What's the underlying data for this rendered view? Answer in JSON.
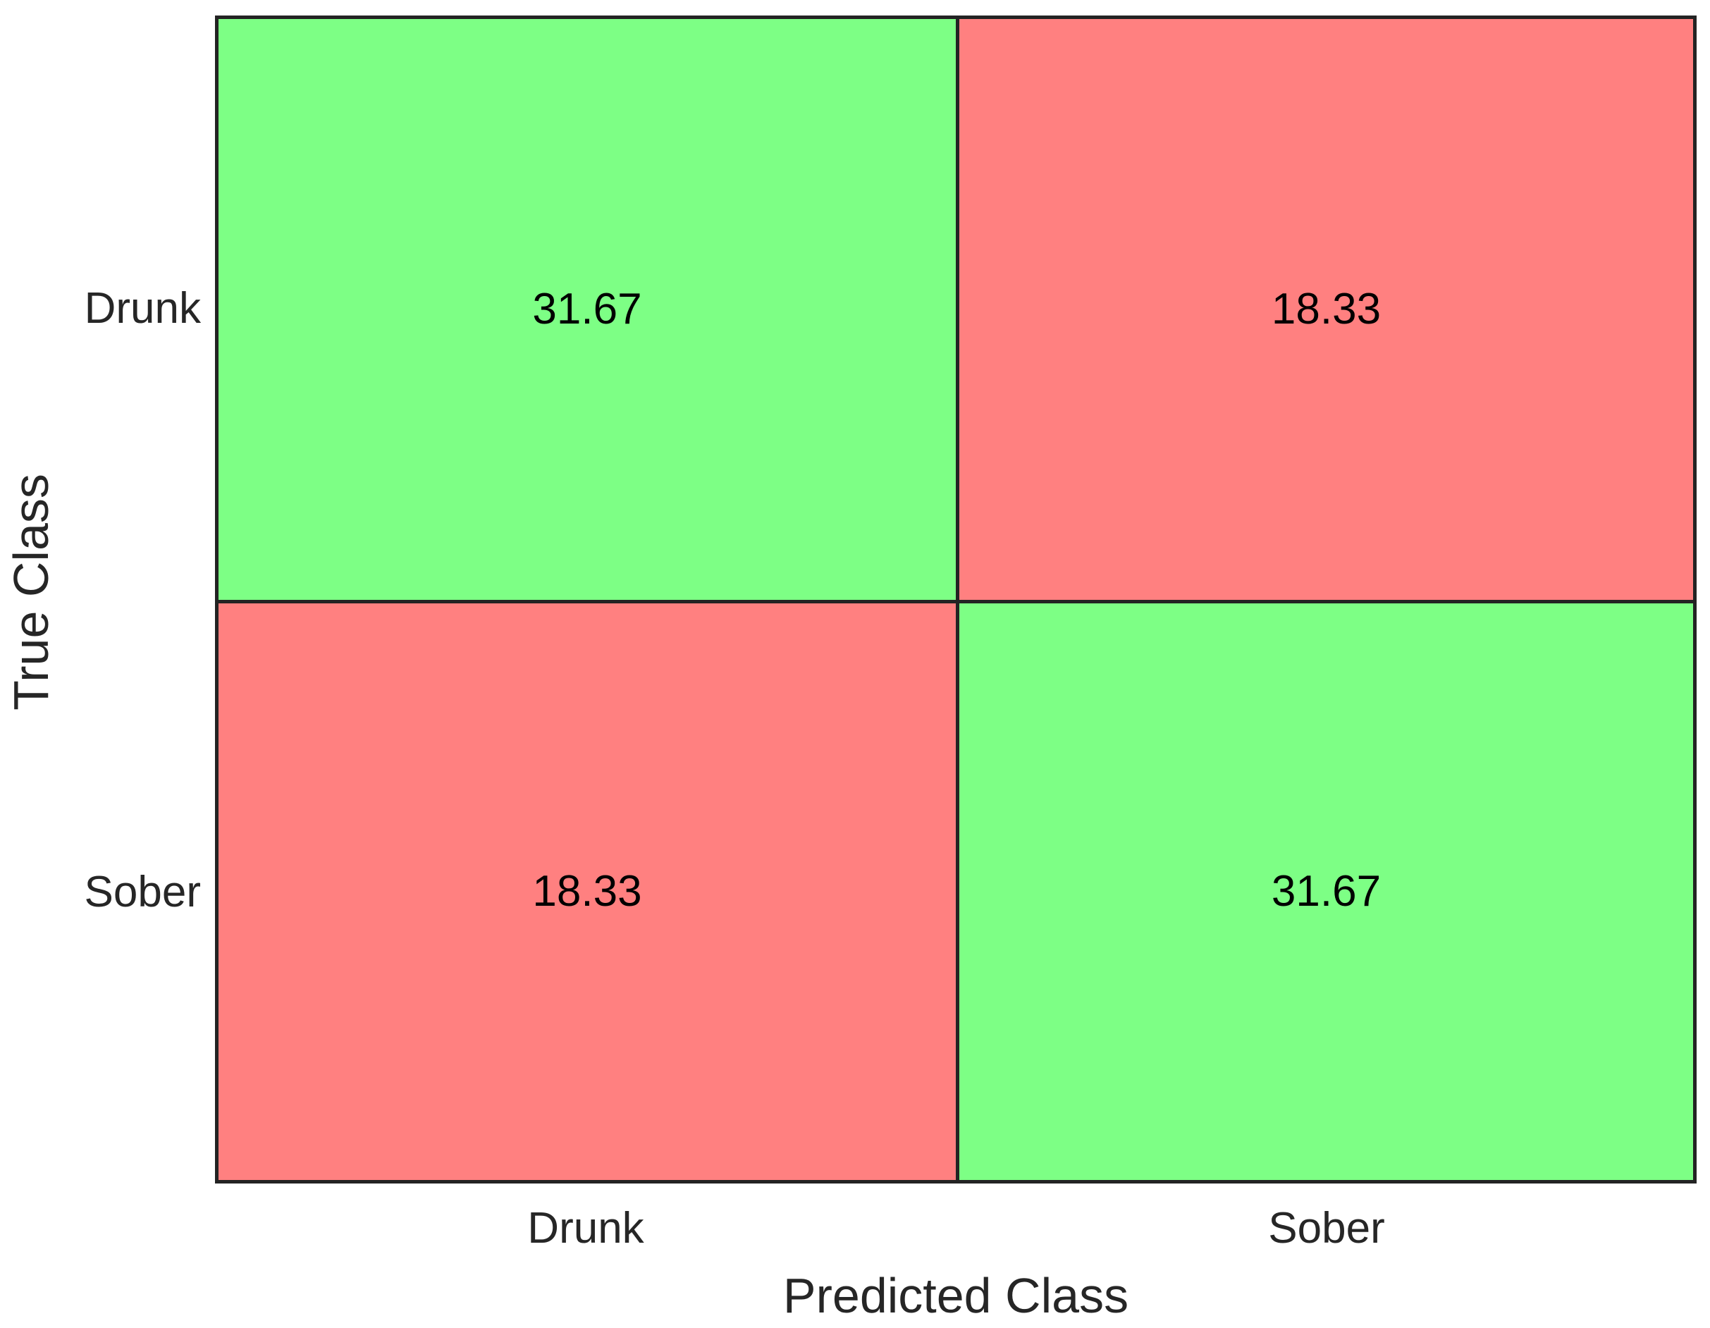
{
  "chart_data": {
    "type": "heatmap",
    "subtype": "confusion-matrix",
    "title": "",
    "xlabel": "Predicted Class",
    "ylabel": "True Class",
    "x_categories": [
      "Drunk",
      "Sober"
    ],
    "y_categories": [
      "Drunk",
      "Sober"
    ],
    "values": [
      [
        31.67,
        18.33
      ],
      [
        18.33,
        31.67
      ]
    ],
    "value_unit": "percent",
    "grid": "off",
    "legend": "none",
    "cell_color_map": [
      [
        "correct",
        "incorrect"
      ],
      [
        "incorrect",
        "correct"
      ]
    ],
    "colors": {
      "correct": "#7DFF85",
      "incorrect": "#FF8080",
      "border": "#232323",
      "axis_text": "#262626",
      "value_text": "#000000"
    }
  },
  "axes": {
    "x_label": "Predicted Class",
    "y_label": "True Class",
    "x_ticks": [
      "Drunk",
      "Sober"
    ],
    "y_ticks": [
      "Drunk",
      "Sober"
    ]
  },
  "matrix": {
    "cells": [
      {
        "row": "Drunk",
        "col": "Drunk",
        "value": "31.67",
        "bg": "#7DFF85"
      },
      {
        "row": "Drunk",
        "col": "Sober",
        "value": "18.33",
        "bg": "#FF8080"
      },
      {
        "row": "Sober",
        "col": "Drunk",
        "value": "18.33",
        "bg": "#FF8080"
      },
      {
        "row": "Sober",
        "col": "Sober",
        "value": "31.67",
        "bg": "#7DFF85"
      }
    ]
  }
}
